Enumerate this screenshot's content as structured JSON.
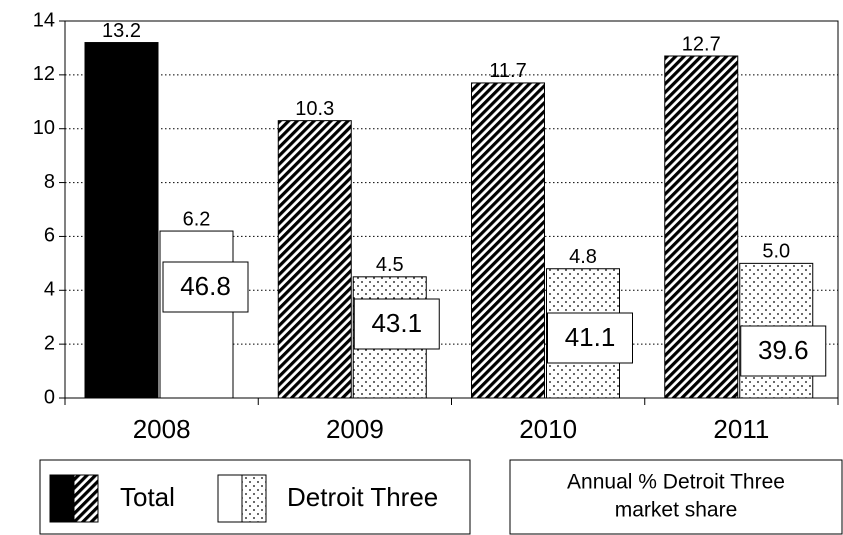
{
  "chart_data": {
    "type": "bar",
    "categories": [
      "2008",
      "2009",
      "2010",
      "2011"
    ],
    "series": [
      {
        "name": "Total",
        "color": "#000000",
        "fills": [
          "solid",
          "hatch",
          "hatch",
          "hatch"
        ],
        "values": [
          13.2,
          10.3,
          11.7,
          12.7
        ]
      },
      {
        "name": "Detroit Three",
        "color": "#ffffff",
        "fills": [
          "solid",
          "dots",
          "dots",
          "dots"
        ],
        "values": [
          6.2,
          4.5,
          4.8,
          5.0
        ],
        "value_labels": [
          "6.2",
          "4.5",
          "4.8",
          "5.0"
        ]
      }
    ],
    "market_share": {
      "label": [
        "Annual % Detroit Three",
        "market share"
      ],
      "values": [
        46.8,
        43.1,
        41.1,
        39.6
      ]
    },
    "ylim": [
      0,
      14
    ],
    "yticks": [
      0,
      2,
      4,
      6,
      8,
      10,
      12,
      14
    ],
    "grid": true
  }
}
